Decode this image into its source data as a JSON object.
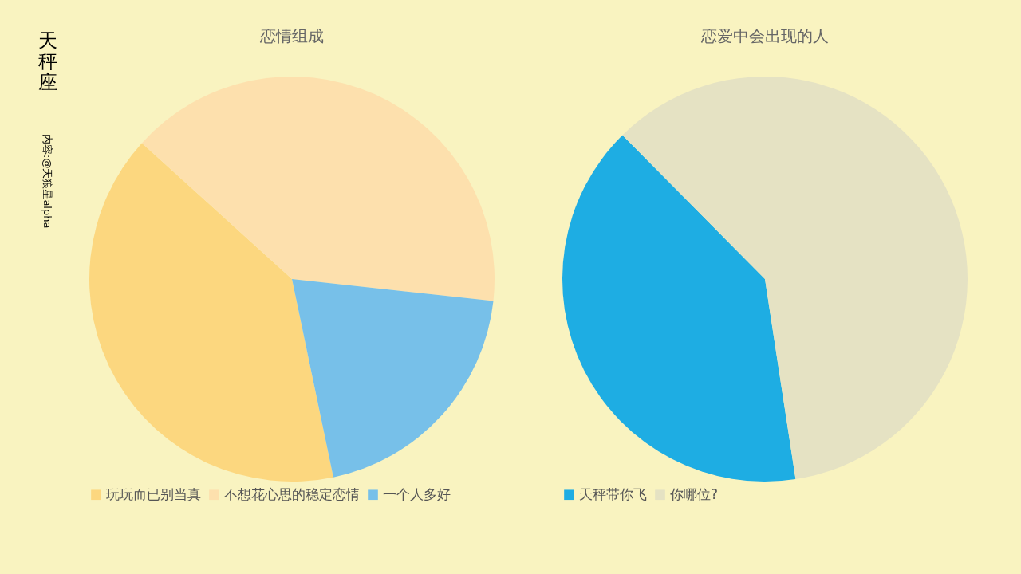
{
  "chart_data": [
    {
      "type": "pie",
      "title": "恋情组成",
      "annotations": [
        "天秤座",
        "内容:@天狼星alpha"
      ],
      "categories": [
        "玩玩而已别当真",
        "不想花心思的稳定恋情",
        "一个人多好"
      ],
      "values": [
        40,
        40,
        20
      ],
      "colors": [
        "#fcd77f",
        "#fde0ad",
        "#77c0e9"
      ],
      "legend": "bottom"
    },
    {
      "type": "pie",
      "title": "恋爱中会出现的人",
      "categories": [
        "天秤带你飞",
        "你哪位?"
      ],
      "values": [
        40,
        60
      ],
      "colors": [
        "#1eade3",
        "#e5e2c3"
      ],
      "legend": "bottom"
    }
  ]
}
